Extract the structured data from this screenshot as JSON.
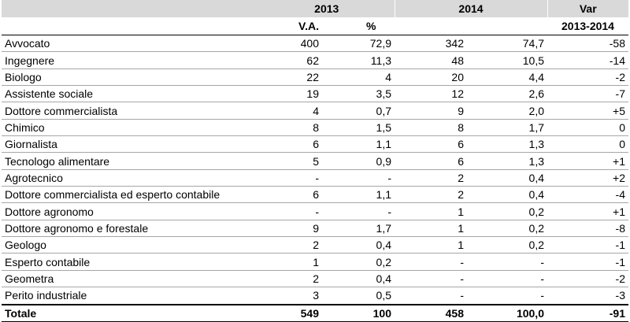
{
  "header": {
    "year_2013": "2013",
    "year_2014": "2014",
    "var": "Var",
    "va": "V.A.",
    "pct": "%",
    "var_period": "2013-2014"
  },
  "rows": [
    {
      "name": "Avvocato",
      "va2013": "400",
      "pct2013": "72,9",
      "va2014": "342",
      "pct2014": "74,7",
      "var": "-58"
    },
    {
      "name": "Ingegnere",
      "va2013": "62",
      "pct2013": "11,3",
      "va2014": "48",
      "pct2014": "10,5",
      "var": "-14"
    },
    {
      "name": "Biologo",
      "va2013": "22",
      "pct2013": "4",
      "va2014": "20",
      "pct2014": "4,4",
      "var": "-2"
    },
    {
      "name": "Assistente sociale",
      "va2013": "19",
      "pct2013": "3,5",
      "va2014": "12",
      "pct2014": "2,6",
      "var": "-7"
    },
    {
      "name": "Dottore commercialista",
      "va2013": "4",
      "pct2013": "0,7",
      "va2014": "9",
      "pct2014": "2,0",
      "var": "+5"
    },
    {
      "name": "Chimico",
      "va2013": "8",
      "pct2013": "1,5",
      "va2014": "8",
      "pct2014": "1,7",
      "var": "0"
    },
    {
      "name": "Giornalista",
      "va2013": "6",
      "pct2013": "1,1",
      "va2014": "6",
      "pct2014": "1,3",
      "var": "0"
    },
    {
      "name": "Tecnologo alimentare",
      "va2013": "5",
      "pct2013": "0,9",
      "va2014": "6",
      "pct2014": "1,3",
      "var": "+1"
    },
    {
      "name": "Agrotecnico",
      "va2013": "-",
      "pct2013": "-",
      "va2014": "2",
      "pct2014": "0,4",
      "var": "+2"
    },
    {
      "name": "Dottore commercialista ed esperto contabile",
      "va2013": "6",
      "pct2013": "1,1",
      "va2014": "2",
      "pct2014": "0,4",
      "var": "-4"
    },
    {
      "name": "Dottore agronomo",
      "va2013": "-",
      "pct2013": "-",
      "va2014": "1",
      "pct2014": "0,2",
      "var": "+1"
    },
    {
      "name": "Dottore agronomo e forestale",
      "va2013": "9",
      "pct2013": "1,7",
      "va2014": "1",
      "pct2014": "0,2",
      "var": "-8"
    },
    {
      "name": "Geologo",
      "va2013": "2",
      "pct2013": "0,4",
      "va2014": "1",
      "pct2014": "0,2",
      "var": "-1"
    },
    {
      "name": "Esperto contabile",
      "va2013": "1",
      "pct2013": "0,2",
      "va2014": "-",
      "pct2014": "-",
      "var": "-1"
    },
    {
      "name": "Geometra",
      "va2013": "2",
      "pct2013": "0,4",
      "va2014": "-",
      "pct2014": "-",
      "var": "-2"
    },
    {
      "name": "Perito industriale",
      "va2013": "3",
      "pct2013": "0,5",
      "va2014": "-",
      "pct2014": "-",
      "var": "-3"
    }
  ],
  "total": {
    "name": "Totale",
    "va2013": "549",
    "pct2013": "100",
    "va2014": "458",
    "pct2014": "100,0",
    "var": "-91"
  }
}
